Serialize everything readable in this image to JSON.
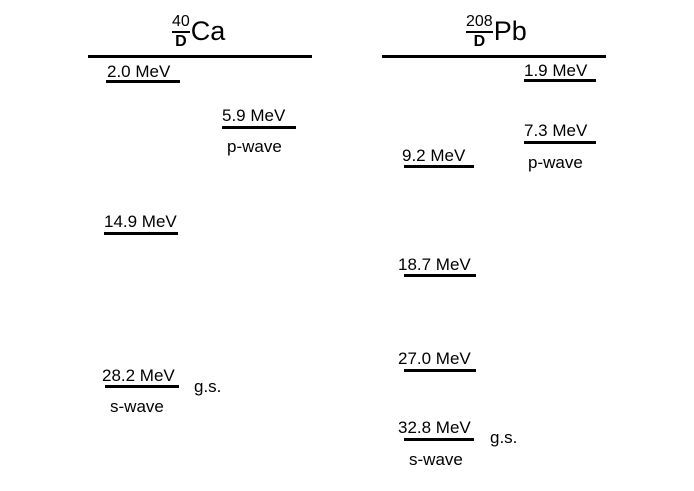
{
  "nuclei": [
    {
      "mass": "40",
      "symbol": "D",
      "element": "Ca",
      "levels": [
        {
          "energy": "2.0 MeV"
        },
        {
          "energy": "5.9 MeV",
          "note": "p-wave"
        },
        {
          "energy": "14.9 MeV"
        },
        {
          "energy": "28.2 MeV",
          "side": "g.s.",
          "note": "s-wave"
        }
      ]
    },
    {
      "mass": "208",
      "symbol": "D",
      "element": "Pb",
      "levels": [
        {
          "energy": "1.9 MeV"
        },
        {
          "energy": "7.3 MeV",
          "note": "p-wave"
        },
        {
          "energy": "9.2 MeV"
        },
        {
          "energy": "18.7 MeV"
        },
        {
          "energy": "27.0 MeV"
        },
        {
          "energy": "32.8 MeV",
          "side": "g.s.",
          "note": "s-wave"
        }
      ]
    }
  ]
}
